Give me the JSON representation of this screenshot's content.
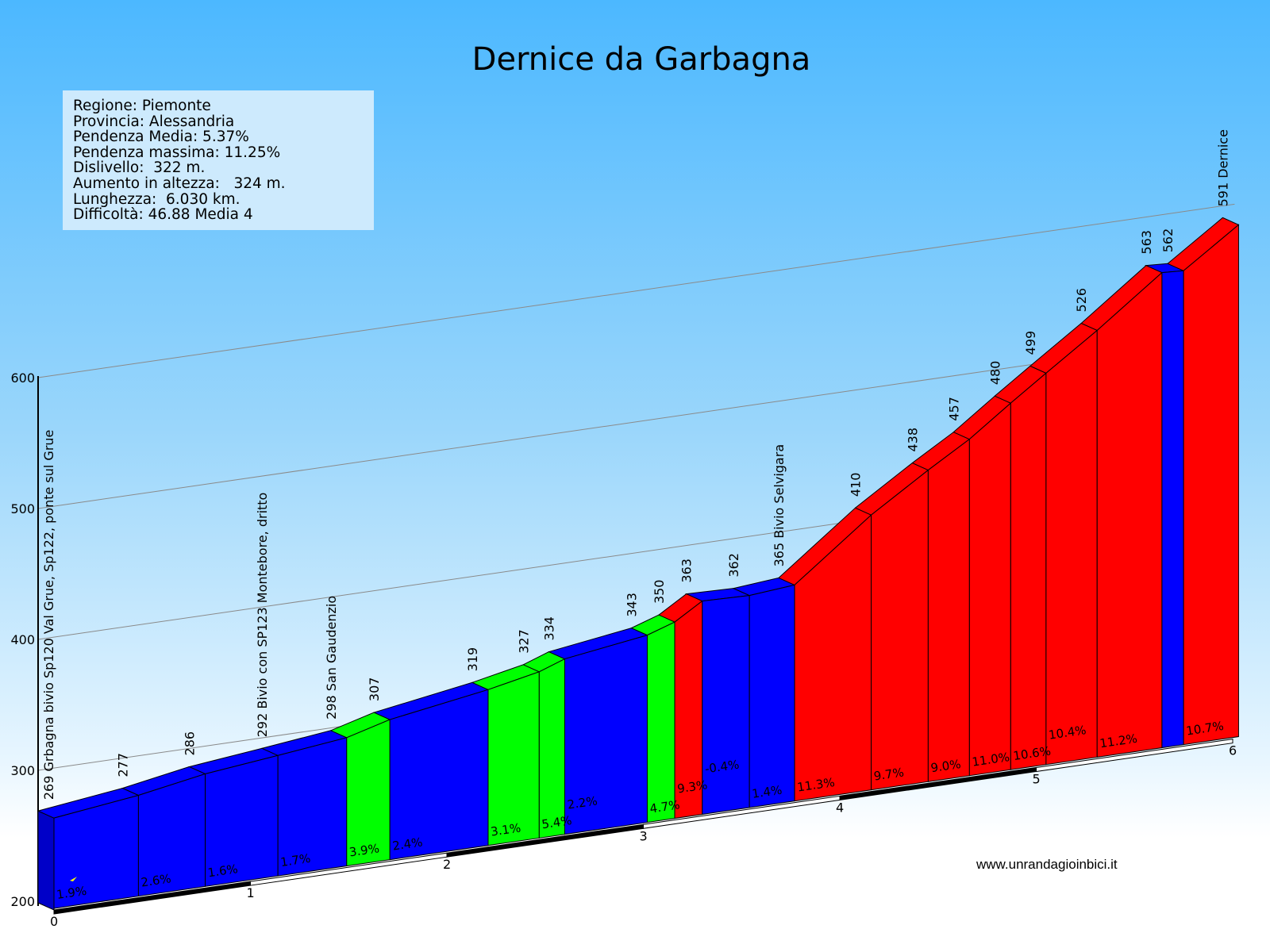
{
  "chart_data": {
    "type": "area",
    "title": "Dernice da Garbagna",
    "xlabel": "",
    "ylabel": "",
    "x_unit": "km",
    "y_unit": "m",
    "xlim": [
      0,
      6.03
    ],
    "ylim": [
      200,
      600
    ],
    "x_ticks": [
      "0",
      "1",
      "2",
      "3",
      "4",
      "5",
      "6"
    ],
    "y_ticks": [
      "200",
      "300",
      "400",
      "500",
      "600"
    ],
    "grid": true,
    "grade_colors": {
      "low": "#0000ff",
      "medium": "#00ff00",
      "high_mid": "#ffff00",
      "high": "#ff0000"
    },
    "points": [
      {
        "km": 0.0,
        "elev": 269,
        "label": "269 Grbagna bivio Sp120 Val Grue, Sp122, ponte sul Grue"
      },
      {
        "km": 0.43,
        "elev": 277,
        "label": "277"
      },
      {
        "km": 0.77,
        "elev": 286,
        "label": "286"
      },
      {
        "km": 1.14,
        "elev": 292,
        "label": "292 Bivio con SP123 Montebore, dritto"
      },
      {
        "km": 1.49,
        "elev": 298,
        "label": "298 San Gaudenzio"
      },
      {
        "km": 1.71,
        "elev": 307,
        "label": "307"
      },
      {
        "km": 2.21,
        "elev": 319,
        "label": "319"
      },
      {
        "km": 2.47,
        "elev": 327,
        "label": "327"
      },
      {
        "km": 2.6,
        "elev": 334,
        "label": "334"
      },
      {
        "km": 3.02,
        "elev": 343,
        "label": "343"
      },
      {
        "km": 3.16,
        "elev": 350,
        "label": "350"
      },
      {
        "km": 3.3,
        "elev": 363,
        "label": "363"
      },
      {
        "km": 3.54,
        "elev": 362,
        "label": "362"
      },
      {
        "km": 3.77,
        "elev": 365,
        "label": "365 Bivio Selvigara"
      },
      {
        "km": 4.16,
        "elev": 410,
        "label": "410"
      },
      {
        "km": 4.45,
        "elev": 438,
        "label": "438"
      },
      {
        "km": 4.66,
        "elev": 457,
        "label": "457"
      },
      {
        "km": 4.87,
        "elev": 480,
        "label": "480"
      },
      {
        "km": 5.05,
        "elev": 499,
        "label": "499"
      },
      {
        "km": 5.31,
        "elev": 526,
        "label": "526"
      },
      {
        "km": 5.64,
        "elev": 563,
        "label": "563"
      },
      {
        "km": 5.75,
        "elev": 562,
        "label": "562"
      },
      {
        "km": 6.03,
        "elev": 591,
        "label": "591 Dernice"
      }
    ],
    "segments": [
      {
        "grade": 1.9,
        "label": "1.9%"
      },
      {
        "grade": 2.6,
        "label": "2.6%"
      },
      {
        "grade": 1.6,
        "label": "1.6%"
      },
      {
        "grade": 1.7,
        "label": "1.7%"
      },
      {
        "grade": 3.9,
        "label": "3.9%"
      },
      {
        "grade": 2.4,
        "label": "2.4%"
      },
      {
        "grade": 3.1,
        "label": "3.1%"
      },
      {
        "grade": 5.4,
        "label": "5.4%"
      },
      {
        "grade": 2.2,
        "label": "2.2%"
      },
      {
        "grade": 4.7,
        "label": "4.7%"
      },
      {
        "grade": 9.3,
        "label": "9.3%"
      },
      {
        "grade": -0.4,
        "label": "-0.4%"
      },
      {
        "grade": 1.4,
        "label": "1.4%"
      },
      {
        "grade": 11.3,
        "label": "11.3%"
      },
      {
        "grade": 9.7,
        "label": "9.7%"
      },
      {
        "grade": 9.0,
        "label": "9.0%"
      },
      {
        "grade": 11.0,
        "label": "11.0%"
      },
      {
        "grade": 10.6,
        "label": "10.6%"
      },
      {
        "grade": 10.4,
        "label": "10.4%"
      },
      {
        "grade": 11.2,
        "label": "11.2%"
      },
      {
        "grade": -0.4,
        "label": ""
      },
      {
        "grade": 10.7,
        "label": "10.7%"
      }
    ]
  },
  "info": {
    "lines": [
      "Regione: Piemonte",
      "Provincia: Alessandria",
      "Pendenza Media: 5.37%",
      "Pendenza massima: 11.25%",
      "Dislivello:  322 m.",
      "Aumento in altezza:   324 m.",
      "Lunghezza:  6.030 km.",
      "Difficoltà: 46.88 Media 4"
    ]
  },
  "website": "www.unrandagioinbici.it"
}
